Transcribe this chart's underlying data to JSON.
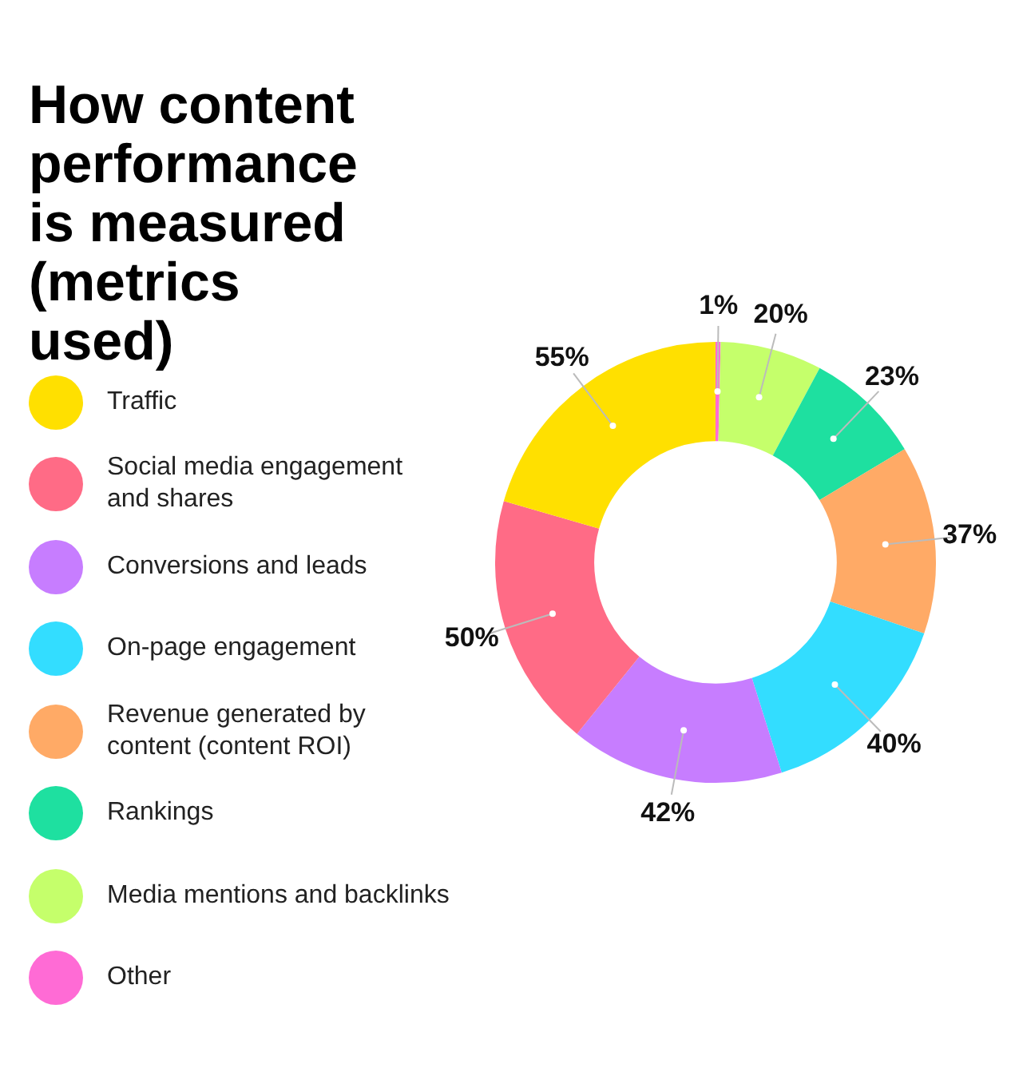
{
  "chart_data": {
    "type": "donut",
    "title": "How content performance is measured (metrics used)",
    "categories": [
      "Traffic",
      "Social media engagement and shares",
      "Conversions and leads",
      "On-page engagement",
      "Revenue generated by content (content ROI)",
      "Rankings",
      "Media mentions and backlinks",
      "Other"
    ],
    "values": [
      55,
      50,
      42,
      40,
      37,
      23,
      20,
      1
    ],
    "colors": [
      "#ffe000",
      "#ff6b86",
      "#c77dff",
      "#33ddff",
      "#ffaa66",
      "#1ee0a0",
      "#c5ff6b",
      "#ff6bd5"
    ],
    "value_labels": [
      "55%",
      "50%",
      "42%",
      "40%",
      "37%",
      "23%",
      "20%",
      "1%"
    ],
    "legend": "left"
  }
}
